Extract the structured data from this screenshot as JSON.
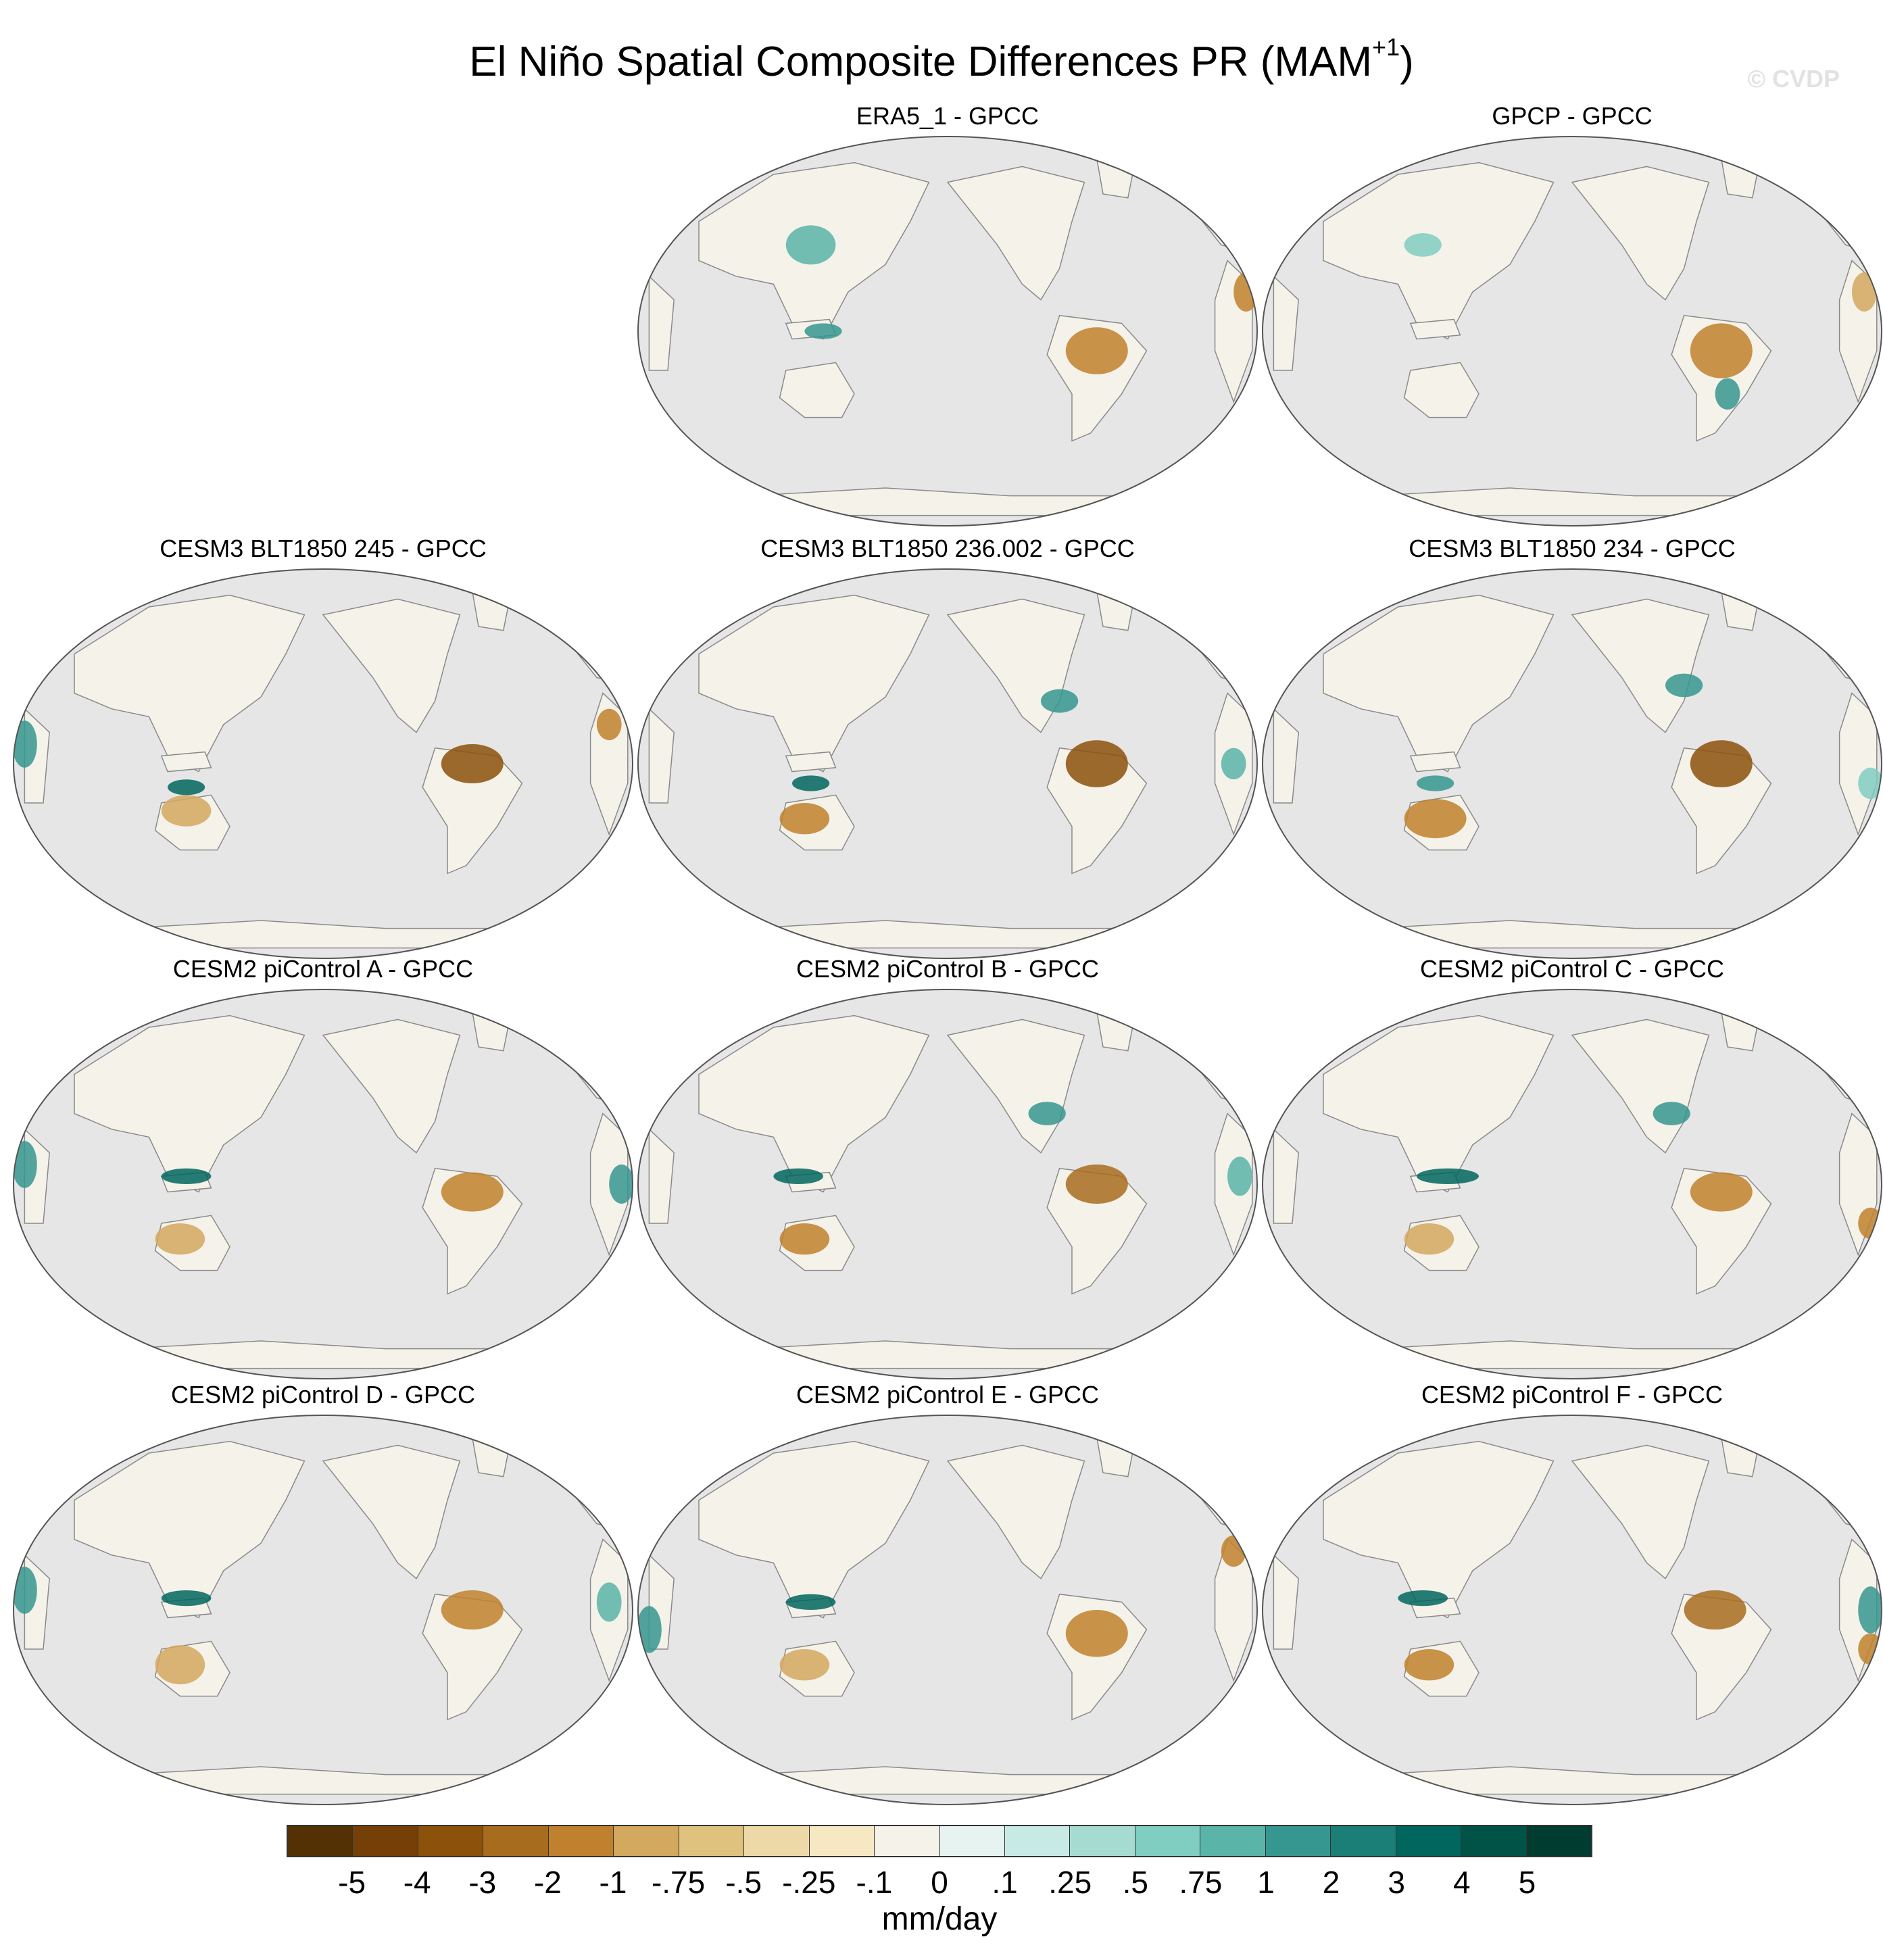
{
  "header": {
    "title_main": "El Niño Spatial Composite Differences PR (MAM",
    "title_sup": "+1",
    "title_end": ")",
    "watermark": "© CVDP"
  },
  "panels": [
    {
      "title": "ERA5_1 - GPCC"
    },
    {
      "title": "GPCP - GPCC"
    },
    {
      "title": "CESM3 BLT1850 245 - GPCC"
    },
    {
      "title": "CESM3 BLT1850 236.002 - GPCC"
    },
    {
      "title": "CESM3 BLT1850 234 - GPCC"
    },
    {
      "title": "CESM2 piControl A - GPCC"
    },
    {
      "title": "CESM2 piControl B - GPCC"
    },
    {
      "title": "CESM2 piControl C - GPCC"
    },
    {
      "title": "CESM2 piControl D - GPCC"
    },
    {
      "title": "CESM2 piControl E - GPCC"
    },
    {
      "title": "CESM2 piControl F - GPCC"
    }
  ],
  "colorbar": {
    "units": "mm/day",
    "labels": [
      "-5",
      "-4",
      "-3",
      "-2",
      "-1",
      "-.75",
      "-.5",
      "-.25",
      "-.1",
      "0",
      ".1",
      ".25",
      ".5",
      ".75",
      "1",
      "2",
      "3",
      "4",
      "5"
    ],
    "colors": [
      "#543005",
      "#744008",
      "#8c510a",
      "#a86c1f",
      "#bf812d",
      "#d3a85f",
      "#dfc27d",
      "#edd9a8",
      "#f6e8c3",
      "#f5f2ea",
      "#e6f3f0",
      "#c7eae5",
      "#a6dbd2",
      "#80cdc1",
      "#5ab4a8",
      "#35978f",
      "#1b7f77",
      "#01665e",
      "#015347",
      "#003c30"
    ]
  },
  "map": {
    "ocean_color": "#e6e6e6",
    "land_neutral": "#f5f2ea"
  }
}
